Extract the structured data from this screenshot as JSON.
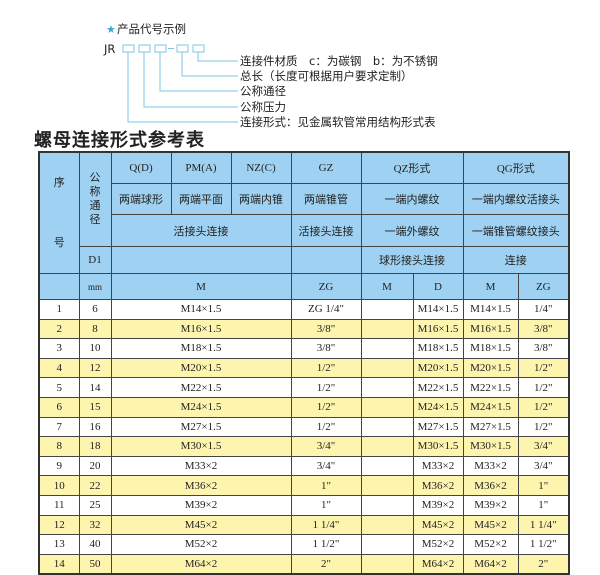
{
  "diagram": {
    "title": "产品代号示例",
    "code_prefix": "JR",
    "labels": [
      "连接件材质　c：为碳钢　b：为不锈钢",
      "总长（长度可根据用户要求定制）",
      "公称通径",
      "公称压力",
      "连接形式：见金属软管常用结构形式表"
    ],
    "accent_color": "#3aa6d8"
  },
  "section_title": "螺母连接形式参考表",
  "table": {
    "header": {
      "seq": "序号",
      "nominal": "公称通径",
      "d1": "D1",
      "mm": "mm",
      "q": "Q(D)",
      "pm": "PM(A)",
      "nz": "NZ(C)",
      "gz": "GZ",
      "qz": "QZ形式",
      "qg": "QG形式",
      "q_desc": "两端球形",
      "pm_desc": "两端平面",
      "nz_desc": "两端内锥",
      "gz_desc": "两端锥管",
      "qz_desc": "一端内螺纹",
      "qg_desc": "一端内螺纹活接头",
      "union_conn": "活接头连接",
      "gz_conn": "活接头连接",
      "qz_conn2": "一端外螺纹",
      "qg_conn2": "一端锥管螺纹接头",
      "qz_conn3": "球形接头连接",
      "qg_conn3": "连接",
      "m": "M",
      "zg": "ZG",
      "qz_m": "M",
      "qz_d": "D",
      "qg_m": "M",
      "qg_zg": "ZG"
    },
    "rows": [
      {
        "no": "1",
        "dn": "6",
        "m": "M14×1.5",
        "zg": "ZG 1/4\"",
        "qz_m": "",
        "qz_d": "M14×1.5",
        "qg_m": "M14×1.5",
        "qg_zg": "1/4\""
      },
      {
        "no": "2",
        "dn": "8",
        "m": "M16×1.5",
        "zg": "3/8\"",
        "qz_m": "",
        "qz_d": "M16×1.5",
        "qg_m": "M16×1.5",
        "qg_zg": "3/8\""
      },
      {
        "no": "3",
        "dn": "10",
        "m": "M18×1.5",
        "zg": "3/8\"",
        "qz_m": "",
        "qz_d": "M18×1.5",
        "qg_m": "M18×1.5",
        "qg_zg": "3/8\""
      },
      {
        "no": "4",
        "dn": "12",
        "m": "M20×1.5",
        "zg": "1/2\"",
        "qz_m": "",
        "qz_d": "M20×1.5",
        "qg_m": "M20×1.5",
        "qg_zg": "1/2\""
      },
      {
        "no": "5",
        "dn": "14",
        "m": "M22×1.5",
        "zg": "1/2\"",
        "qz_m": "",
        "qz_d": "M22×1.5",
        "qg_m": "M22×1.5",
        "qg_zg": "1/2\""
      },
      {
        "no": "6",
        "dn": "15",
        "m": "M24×1.5",
        "zg": "1/2\"",
        "qz_m": "",
        "qz_d": "M24×1.5",
        "qg_m": "M24×1.5",
        "qg_zg": "1/2\""
      },
      {
        "no": "7",
        "dn": "16",
        "m": "M27×1.5",
        "zg": "1/2\"",
        "qz_m": "",
        "qz_d": "M27×1.5",
        "qg_m": "M27×1.5",
        "qg_zg": "1/2\""
      },
      {
        "no": "8",
        "dn": "18",
        "m": "M30×1.5",
        "zg": "3/4\"",
        "qz_m": "",
        "qz_d": "M30×1.5",
        "qg_m": "M30×1.5",
        "qg_zg": "3/4\""
      },
      {
        "no": "9",
        "dn": "20",
        "m": "M33×2",
        "zg": "3/4\"",
        "qz_m": "",
        "qz_d": "M33×2",
        "qg_m": "M33×2",
        "qg_zg": "3/4\""
      },
      {
        "no": "10",
        "dn": "22",
        "m": "M36×2",
        "zg": "1\"",
        "qz_m": "",
        "qz_d": "M36×2",
        "qg_m": "M36×2",
        "qg_zg": "1\""
      },
      {
        "no": "11",
        "dn": "25",
        "m": "M39×2",
        "zg": "1\"",
        "qz_m": "",
        "qz_d": "M39×2",
        "qg_m": "M39×2",
        "qg_zg": "1\""
      },
      {
        "no": "12",
        "dn": "32",
        "m": "M45×2",
        "zg": "1 1/4\"",
        "qz_m": "",
        "qz_d": "M45×2",
        "qg_m": "M45×2",
        "qg_zg": "1 1/4\""
      },
      {
        "no": "13",
        "dn": "40",
        "m": "M52×2",
        "zg": "1 1/2\"",
        "qz_m": "",
        "qz_d": "M52×2",
        "qg_m": "M52×2",
        "qg_zg": "1 1/2\""
      },
      {
        "no": "14",
        "dn": "50",
        "m": "M64×2",
        "zg": "2\"",
        "qz_m": "",
        "qz_d": "M64×2",
        "qg_m": "M64×2",
        "qg_zg": "2\""
      }
    ],
    "colors": {
      "header": "#9fd2f2",
      "alt_row": "#fdf5ad"
    }
  }
}
